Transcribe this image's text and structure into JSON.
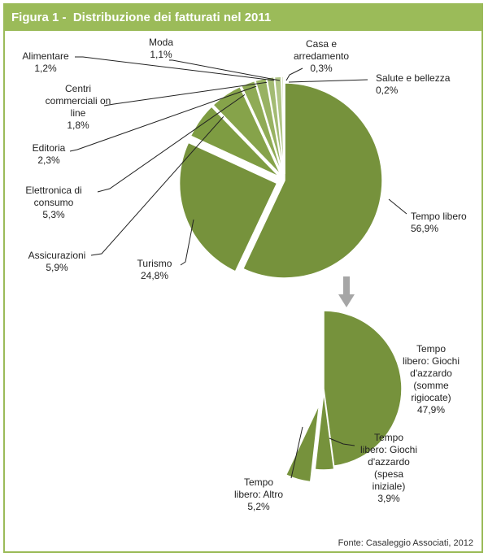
{
  "header": {
    "title": "Figura 1 -  Distribuzione dei fatturati nel 2011"
  },
  "source": "Fonte: Casaleggio Associati, 2012",
  "colors": {
    "accent": "#9bbb59",
    "slice": "#76923c",
    "slice_dark": "#5e7a2e",
    "arrow": "#a6a6a6"
  },
  "chart_data": [
    {
      "type": "pie",
      "title": "Distribuzione dei fatturati nel 2011",
      "slices": [
        {
          "label": [
            "Tempo libero"
          ],
          "value_label": "56,9%",
          "value": 56.9
        },
        {
          "label": [
            "Turismo"
          ],
          "value_label": "24,8%",
          "value": 24.8
        },
        {
          "label": [
            "Assicurazioni"
          ],
          "value_label": "5,9%",
          "value": 5.9
        },
        {
          "label": [
            "Elettronica di",
            "consumo"
          ],
          "value_label": "5,3%",
          "value": 5.3
        },
        {
          "label": [
            "Editoria"
          ],
          "value_label": "2,3%",
          "value": 2.3
        },
        {
          "label": [
            "Centri",
            "commerciali on",
            "line"
          ],
          "value_label": "1,8%",
          "value": 1.8
        },
        {
          "label": [
            "Alimentare"
          ],
          "value_label": "1,2%",
          "value": 1.2
        },
        {
          "label": [
            "Moda"
          ],
          "value_label": "1,1%",
          "value": 1.1
        },
        {
          "label": [
            "Casa e",
            "arredamento"
          ],
          "value_label": "0,3%",
          "value": 0.3
        },
        {
          "label": [
            "Salute e bellezza"
          ],
          "value_label": "0,2%",
          "value": 0.2
        }
      ]
    },
    {
      "type": "pie",
      "title": "Tempo libero",
      "slices": [
        {
          "label": [
            "Tempo",
            "libero: Giochi",
            "d'azzardo",
            "(somme",
            "rigiocate)"
          ],
          "value_label": "47,9%",
          "value": 47.9
        },
        {
          "label": [
            "Tempo",
            "libero: Giochi",
            "d'azzardo",
            "(spesa",
            "iniziale)"
          ],
          "value_label": "3,9%",
          "value": 3.9
        },
        {
          "label": [
            "Tempo",
            "libero: Altro"
          ],
          "value_label": "5,2%",
          "value": 5.2
        }
      ]
    }
  ]
}
